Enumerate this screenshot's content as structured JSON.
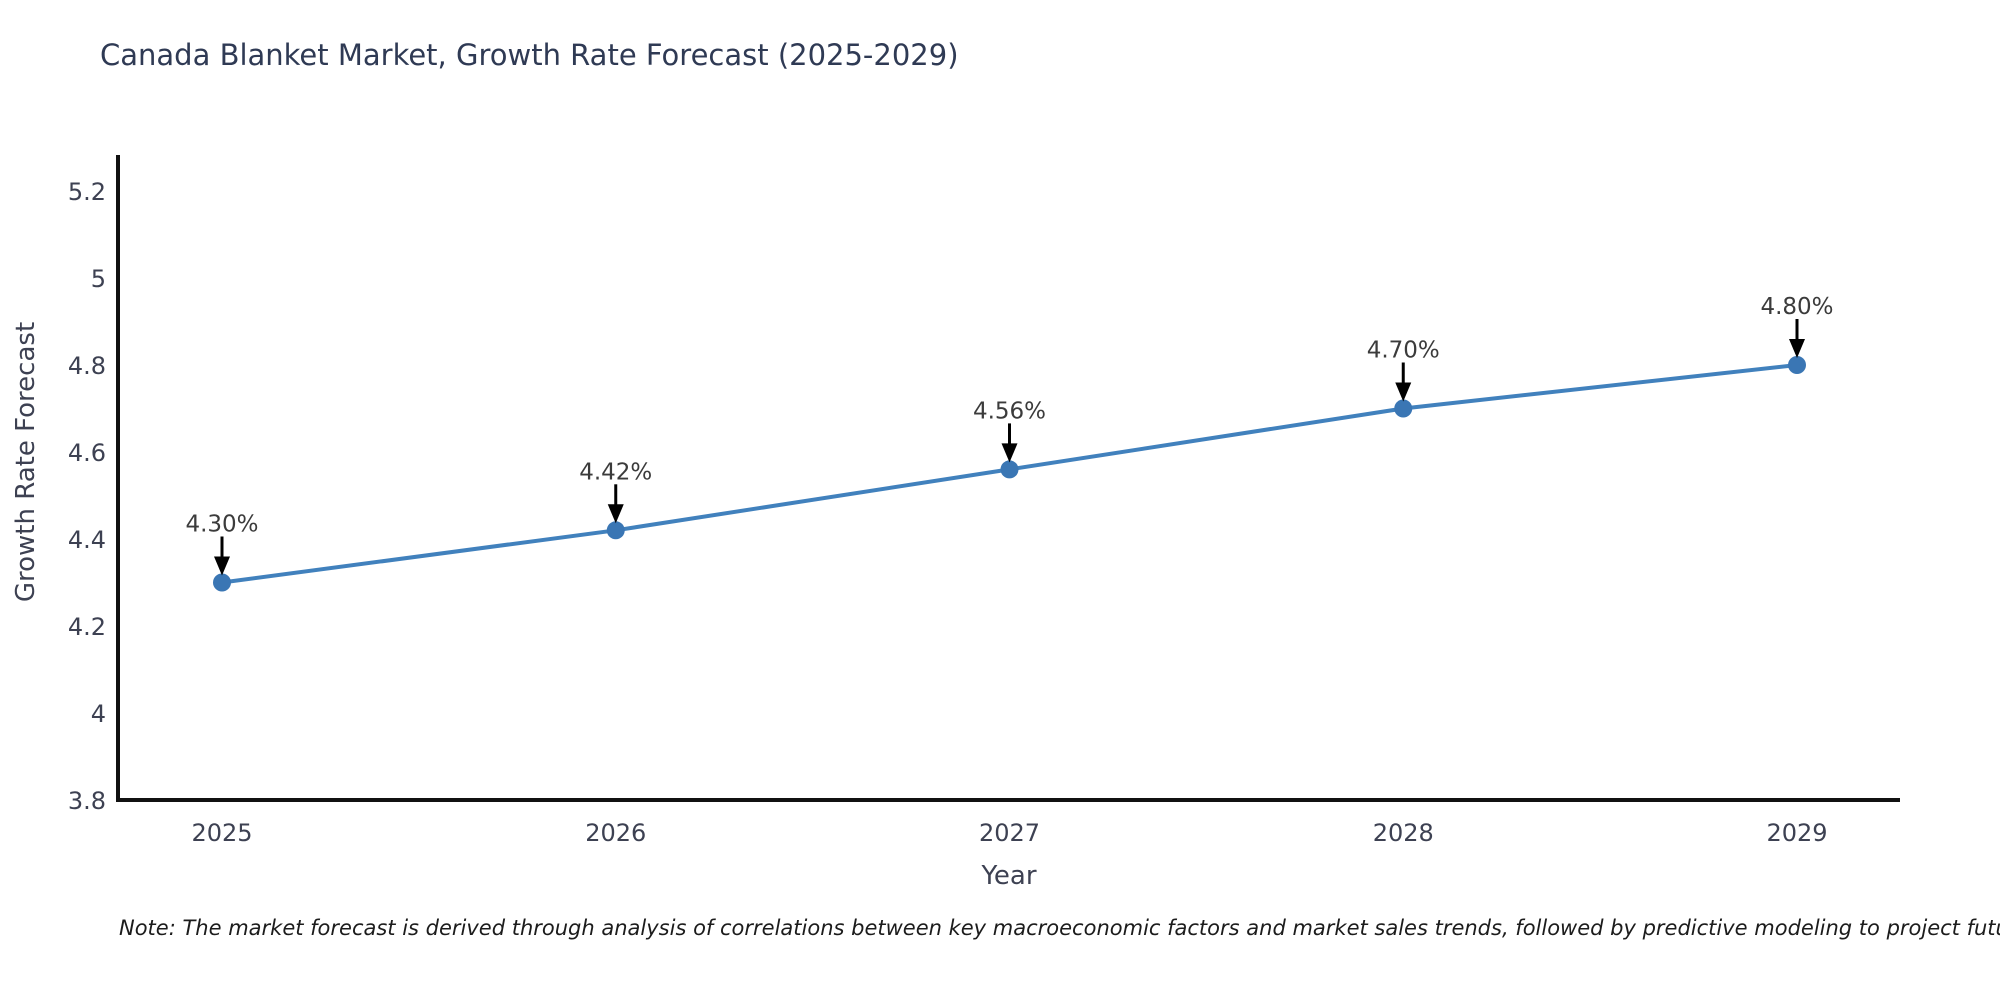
{
  "chart": {
    "title": "Canada Blanket Market, Growth Rate Forecast (2025-2029)",
    "xlabel": "Year",
    "ylabel": "Growth Rate Forecast",
    "note": "Note: The market forecast is derived through analysis of correlations between key macroeconomic factors and market sales trends, followed by predictive modeling to project future sales"
  },
  "chart_data": {
    "type": "line",
    "title": "Canada Blanket Market, Growth Rate Forecast (2025-2029)",
    "xlabel": "Year",
    "ylabel": "Growth Rate Forecast",
    "categories": [
      "2025",
      "2026",
      "2027",
      "2028",
      "2029"
    ],
    "values": [
      4.3,
      4.42,
      4.56,
      4.7,
      4.8
    ],
    "point_labels": [
      "4.30%",
      "4.42%",
      "4.56%",
      "4.70%",
      "4.80%"
    ],
    "ylim": [
      3.8,
      5.2
    ],
    "ytick_labels": [
      "3.8",
      "4",
      "4.2",
      "4.4",
      "4.6",
      "4.8",
      "5",
      "5.2"
    ],
    "grid": false,
    "legend": false,
    "annotations": "black arrows pointing down from each value label to its data point",
    "colors": {
      "line": "#4181bd",
      "marker": "#3a76b4",
      "axis": "#111111",
      "tick_text": "#3d4152",
      "annotation_text": "#3b3b3b",
      "title_text": "#2f3a54",
      "arrow": "#000000"
    }
  }
}
